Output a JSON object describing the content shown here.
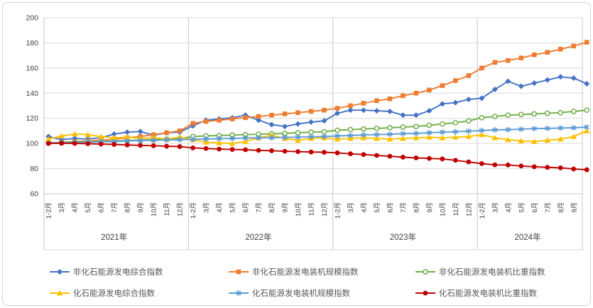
{
  "chart_data": {
    "type": "line",
    "title": "",
    "xlabel": "",
    "ylabel": "",
    "ylim": [
      60,
      200
    ],
    "y_ticks": [
      60,
      80,
      100,
      120,
      140,
      160,
      180,
      200
    ],
    "grid": true,
    "legend_position": "bottom",
    "axis_text_color": "#404040",
    "grid_color": "#d9d9d9",
    "axis_line_color": "#c6c6c6",
    "legend_text_color": "#595959",
    "x_groups": [
      {
        "year": "2021年",
        "months": [
          "1-2月",
          "3月",
          "4月",
          "5月",
          "6月",
          "7月",
          "8月",
          "9月",
          "10月",
          "11月",
          "12月"
        ]
      },
      {
        "year": "2022年",
        "months": [
          "1-2月",
          "3月",
          "4月",
          "5月",
          "6月",
          "7月",
          "8月",
          "9月",
          "10月",
          "11月",
          "12月"
        ]
      },
      {
        "year": "2023年",
        "months": [
          "1-2月",
          "3月",
          "4月",
          "5月",
          "6月",
          "7月",
          "8月",
          "9月",
          "10月",
          "11月",
          "12月"
        ]
      },
      {
        "year": "2024年",
        "months": [
          "1-2月",
          "3月",
          "4月",
          "5月",
          "6月",
          "7月",
          "8月",
          "9月"
        ]
      }
    ],
    "series": [
      {
        "name": "非化石能源发电综合指数",
        "color": "#4472C4",
        "marker": "diamond",
        "values": [
          105.5,
          103,
          104,
          103.5,
          104.5,
          107.5,
          109,
          109.5,
          106.5,
          108.5,
          109,
          114,
          118.5,
          119.5,
          120.5,
          122.5,
          118.5,
          115,
          113.5,
          115.5,
          117,
          118,
          124,
          126.5,
          126.5,
          126,
          125.5,
          122.5,
          122.5,
          126,
          131.5,
          132.5,
          135,
          136,
          143,
          149.5,
          145.5,
          148,
          150.5,
          153,
          152,
          147.5
        ]
      },
      {
        "name": "非化石能源发电装机规模指数",
        "color": "#ED7D31",
        "marker": "square",
        "values": [
          100.5,
          101,
          101.5,
          102,
          102.5,
          103.5,
          104.5,
          105.5,
          107,
          108.5,
          110,
          116,
          117.5,
          118.5,
          119.5,
          120.5,
          121.5,
          122.5,
          123.5,
          124.5,
          125.5,
          126.5,
          128,
          130,
          132,
          134,
          135.5,
          138,
          140,
          142.5,
          146,
          150,
          154,
          160,
          164.5,
          166,
          168,
          170.5,
          172.5,
          175,
          177.5,
          180.5
        ]
      },
      {
        "name": "非化石能源发电装机比重指数",
        "color": "#70AD47",
        "marker": "circle-open",
        "values": [
          100.5,
          100.8,
          101,
          101.3,
          101.5,
          102,
          102.3,
          102.7,
          103,
          103.5,
          104,
          105.5,
          106,
          106.3,
          106.7,
          107,
          107.3,
          107.7,
          108,
          108.5,
          109,
          109.3,
          110.5,
          111,
          111.5,
          112,
          112.5,
          113,
          113.5,
          114.5,
          115.5,
          116.5,
          118,
          120.5,
          121.5,
          122.5,
          123,
          123.5,
          124,
          124.5,
          125.5,
          126.5
        ]
      },
      {
        "name": "化石能源发电综合指数",
        "color": "#FFC000",
        "marker": "triangle",
        "values": [
          103.5,
          106,
          107.5,
          107,
          105.5,
          104.5,
          105,
          104,
          104.5,
          103.5,
          105,
          103,
          101,
          100.5,
          100,
          101.5,
          104.5,
          106.5,
          104,
          102.5,
          104,
          104.5,
          103.5,
          104,
          104.5,
          104,
          103.5,
          104,
          104.5,
          105,
          104.5,
          105,
          105.5,
          107,
          104.5,
          103,
          102,
          101.5,
          102.5,
          103.5,
          105.5,
          110
        ]
      },
      {
        "name": "化石能源发电装机规模指数",
        "color": "#5B9BD5",
        "marker": "asterisk",
        "values": [
          100.3,
          100.5,
          100.8,
          101,
          101.3,
          101.5,
          102,
          102.3,
          102.5,
          102.8,
          103,
          103.3,
          103.5,
          103.8,
          104,
          104.3,
          104.5,
          104.5,
          104.8,
          105,
          105.3,
          105.5,
          106,
          106.3,
          106.8,
          107,
          107.3,
          107.8,
          108,
          108.5,
          109,
          109.3,
          109.8,
          110.3,
          110.8,
          111,
          111.3,
          111.8,
          112,
          112.3,
          112.5,
          113
        ]
      },
      {
        "name": "化石能源发电装机比重指数",
        "color": "#C00000",
        "marker": "circle",
        "values": [
          100,
          100.2,
          100,
          99.8,
          99.5,
          99.2,
          98.8,
          98.5,
          98.2,
          97.8,
          97.5,
          96.5,
          96,
          95.5,
          95.2,
          95,
          94.5,
          94.2,
          93.8,
          93.5,
          93.2,
          93,
          92.5,
          91.8,
          91.2,
          90.5,
          89.8,
          89.1,
          88.5,
          88.1,
          87.7,
          86.6,
          85.3,
          84,
          83,
          82.9,
          82.1,
          81.5,
          81,
          80.6,
          79.7,
          79.1
        ]
      }
    ],
    "legend_rows": [
      [
        0,
        1,
        2
      ],
      [
        3,
        4,
        5
      ]
    ]
  }
}
